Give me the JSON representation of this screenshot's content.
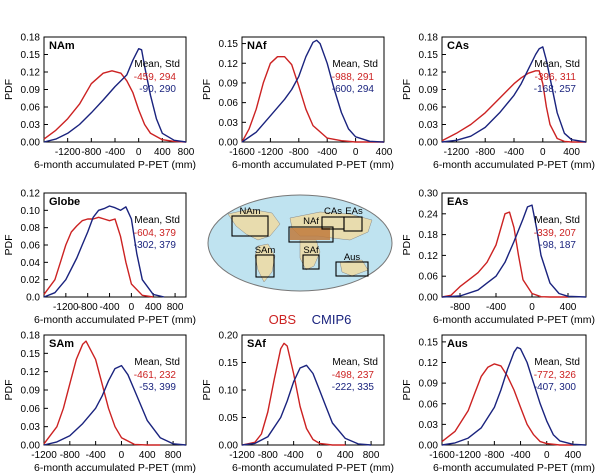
{
  "figure": {
    "obs_color": "#cc2222",
    "cmip_color": "#1a237e",
    "legend": {
      "obs_label": "OBS",
      "cmip_label": "CMIP6"
    },
    "stats_header": "Mean, Std",
    "map_labels": [
      "NAm",
      "NAf",
      "CAs",
      "EAs",
      "SAm",
      "SAf",
      "Aus"
    ]
  },
  "chart_data": [
    {
      "id": "nam",
      "type": "line",
      "title": "NAm",
      "xlabel": "6-month accumulated P-PET (mm)",
      "ylabel": "PDF",
      "xlim": [
        -1600,
        800
      ],
      "xticks": [
        -1200,
        -800,
        -400,
        0,
        400,
        800
      ],
      "xtick_labels": [
        "-1200",
        "-800",
        "-400",
        "0",
        "400",
        "800"
      ],
      "ylim": [
        0,
        0.18
      ],
      "yticks": [
        0,
        0.03,
        0.06,
        0.09,
        0.12,
        0.15,
        0.18
      ],
      "ytick_labels": [
        "0.00",
        "0.03",
        "0.06",
        "0.09",
        "0.12",
        "0.15",
        "0.18"
      ],
      "stats": [
        {
          "name": "OBS",
          "text": "-459, 294"
        },
        {
          "name": "CMIP6",
          "text": "-90, 290"
        }
      ],
      "series": [
        {
          "name": "OBS",
          "x": [
            -1600,
            -1400,
            -1200,
            -1000,
            -800,
            -600,
            -450,
            -300,
            -200,
            -100,
            0,
            100,
            200,
            400,
            600,
            800
          ],
          "y": [
            0.005,
            0.02,
            0.04,
            0.065,
            0.1,
            0.118,
            0.122,
            0.118,
            0.105,
            0.085,
            0.055,
            0.03,
            0.015,
            0.004,
            0.001,
            0
          ]
        },
        {
          "name": "CMIP6",
          "x": [
            -1600,
            -1400,
            -1200,
            -1000,
            -800,
            -600,
            -400,
            -200,
            -100,
            0,
            50,
            100,
            200,
            300,
            400,
            600,
            800
          ],
          "y": [
            0,
            0.005,
            0.015,
            0.03,
            0.05,
            0.072,
            0.095,
            0.115,
            0.14,
            0.16,
            0.158,
            0.13,
            0.08,
            0.04,
            0.015,
            0.003,
            0
          ]
        }
      ]
    },
    {
      "id": "naf",
      "type": "line",
      "title": "NAf",
      "xlabel": "6-month accumulated P-PET (mm)",
      "ylabel": "PDF",
      "xlim": [
        -1600,
        400
      ],
      "xticks": [
        -1600,
        -1200,
        -800,
        -400,
        0,
        400
      ],
      "xtick_labels": [
        "-1600",
        "-1200",
        "-800",
        "-400",
        "0",
        "400"
      ],
      "ylim": [
        0,
        0.16
      ],
      "yticks": [
        0,
        0.03,
        0.06,
        0.09,
        0.12,
        0.15
      ],
      "ytick_labels": [
        "0.00",
        "0.03",
        "0.06",
        "0.09",
        "0.12",
        "0.15"
      ],
      "stats": [
        {
          "name": "OBS",
          "text": "-988, 291"
        },
        {
          "name": "CMIP6",
          "text": "-600, 294"
        }
      ],
      "series": [
        {
          "name": "OBS",
          "x": [
            -1600,
            -1500,
            -1400,
            -1300,
            -1200,
            -1100,
            -1000,
            -900,
            -800,
            -700,
            -600,
            -400,
            -200,
            0,
            200,
            400
          ],
          "y": [
            0,
            0.02,
            0.05,
            0.09,
            0.12,
            0.13,
            0.13,
            0.118,
            0.085,
            0.05,
            0.025,
            0.006,
            0.002,
            0,
            0,
            0
          ]
        },
        {
          "name": "CMIP6",
          "x": [
            -1600,
            -1400,
            -1200,
            -1000,
            -900,
            -800,
            -700,
            -600,
            -550,
            -500,
            -400,
            -300,
            -200,
            -100,
            0,
            200,
            400
          ],
          "y": [
            0,
            0.015,
            0.04,
            0.065,
            0.08,
            0.1,
            0.13,
            0.152,
            0.155,
            0.15,
            0.12,
            0.08,
            0.045,
            0.02,
            0.008,
            0.001,
            0
          ]
        }
      ]
    },
    {
      "id": "cas",
      "type": "line",
      "title": "CAs",
      "xlabel": "6-month accumulated P-PET (mm)",
      "ylabel": "PDF",
      "xlim": [
        -1400,
        600
      ],
      "xticks": [
        -1200,
        -800,
        -400,
        0,
        400
      ],
      "xtick_labels": [
        "-1200",
        "-800",
        "-400",
        "0",
        "400"
      ],
      "ylim": [
        0,
        0.18
      ],
      "yticks": [
        0,
        0.03,
        0.06,
        0.09,
        0.12,
        0.15,
        0.18
      ],
      "ytick_labels": [
        "0.00",
        "0.03",
        "0.06",
        "0.09",
        "0.12",
        "0.15",
        "0.18"
      ],
      "stats": [
        {
          "name": "OBS",
          "text": "-396, 311"
        },
        {
          "name": "CMIP6",
          "text": "-168, 257"
        }
      ],
      "series": [
        {
          "name": "OBS",
          "x": [
            -1400,
            -1200,
            -1000,
            -800,
            -600,
            -400,
            -300,
            -200,
            -100,
            -50,
            0,
            50,
            100,
            200,
            300,
            400,
            600
          ],
          "y": [
            0.002,
            0.015,
            0.03,
            0.05,
            0.075,
            0.1,
            0.11,
            0.118,
            0.122,
            0.122,
            0.1,
            0.06,
            0.03,
            0.006,
            0.001,
            0,
            0
          ]
        },
        {
          "name": "CMIP6",
          "x": [
            -1400,
            -1200,
            -1000,
            -800,
            -600,
            -400,
            -300,
            -200,
            -100,
            -50,
            0,
            50,
            100,
            200,
            300,
            400,
            600
          ],
          "y": [
            0,
            0.003,
            0.01,
            0.025,
            0.05,
            0.08,
            0.1,
            0.125,
            0.15,
            0.16,
            0.163,
            0.14,
            0.11,
            0.05,
            0.015,
            0.004,
            0
          ]
        }
      ]
    },
    {
      "id": "globe",
      "type": "line",
      "title": "Globe",
      "xlabel": "6-month accumulated P-PET (mm)",
      "ylabel": "PDF",
      "xlim": [
        -1600,
        1000
      ],
      "xticks": [
        -1200,
        -800,
        -400,
        0,
        400,
        800
      ],
      "xtick_labels": [
        "-1200",
        "-800",
        "-400",
        "0",
        "400",
        "800"
      ],
      "ylim": [
        0,
        0.12
      ],
      "yticks": [
        0,
        0.02,
        0.04,
        0.06,
        0.08,
        0.1,
        0.12
      ],
      "ytick_labels": [
        "0.0",
        "0.02",
        "0.04",
        "0.06",
        "0.08",
        "0.10",
        "0.12"
      ],
      "stats": [
        {
          "name": "OBS",
          "text": "-604, 379"
        },
        {
          "name": "CMIP6",
          "text": "-302, 379"
        }
      ],
      "series": [
        {
          "name": "OBS",
          "x": [
            -1600,
            -1400,
            -1300,
            -1200,
            -1100,
            -1000,
            -900,
            -800,
            -700,
            -600,
            -500,
            -400,
            -300,
            -200,
            -100,
            0,
            200,
            400
          ],
          "y": [
            0.003,
            0.02,
            0.04,
            0.06,
            0.075,
            0.082,
            0.088,
            0.09,
            0.09,
            0.092,
            0.09,
            0.088,
            0.09,
            0.07,
            0.04,
            0.015,
            0.002,
            0
          ]
        },
        {
          "name": "CMIP6",
          "x": [
            -1600,
            -1400,
            -1200,
            -1000,
            -900,
            -800,
            -700,
            -600,
            -500,
            -400,
            -300,
            -200,
            -100,
            0,
            100,
            200,
            400,
            600
          ],
          "y": [
            0,
            0.005,
            0.02,
            0.045,
            0.06,
            0.075,
            0.092,
            0.1,
            0.102,
            0.105,
            0.103,
            0.1,
            0.104,
            0.09,
            0.05,
            0.02,
            0.003,
            0
          ]
        }
      ]
    },
    {
      "id": "eas",
      "type": "line",
      "title": "EAs",
      "xlabel": "6-month accumulated P-PET (mm)",
      "ylabel": "PDF",
      "xlim": [
        -1000,
        600
      ],
      "xticks": [
        -800,
        -400,
        0,
        400
      ],
      "xtick_labels": [
        "-800",
        "-400",
        "0",
        "400"
      ],
      "ylim": [
        0,
        0.3
      ],
      "yticks": [
        0,
        0.06,
        0.12,
        0.18,
        0.24,
        0.3
      ],
      "ytick_labels": [
        "0.00",
        "0.06",
        "0.12",
        "0.18",
        "0.24",
        "0.30"
      ],
      "stats": [
        {
          "name": "OBS",
          "text": "-339, 207"
        },
        {
          "name": "CMIP6",
          "text": "-98, 187"
        }
      ],
      "series": [
        {
          "name": "OBS",
          "x": [
            -1000,
            -900,
            -800,
            -700,
            -600,
            -500,
            -400,
            -300,
            -250,
            -200,
            -150,
            -100,
            0,
            100,
            200,
            400
          ],
          "y": [
            0,
            0.005,
            0.03,
            0.05,
            0.07,
            0.1,
            0.15,
            0.24,
            0.245,
            0.2,
            0.12,
            0.05,
            0.01,
            0.001,
            0,
            0
          ]
        },
        {
          "name": "CMIP6",
          "x": [
            -1000,
            -800,
            -600,
            -500,
            -400,
            -300,
            -200,
            -100,
            -50,
            0,
            50,
            100,
            200,
            300,
            400,
            600
          ],
          "y": [
            0,
            0.003,
            0.02,
            0.04,
            0.06,
            0.1,
            0.16,
            0.225,
            0.26,
            0.265,
            0.2,
            0.12,
            0.04,
            0.01,
            0.002,
            0
          ]
        }
      ]
    },
    {
      "id": "sam",
      "type": "line",
      "title": "SAm",
      "xlabel": "6-month accumulated P-PET (mm)",
      "ylabel": "PDF",
      "xlim": [
        -1200,
        1000
      ],
      "xticks": [
        -1200,
        -800,
        -400,
        0,
        400,
        800
      ],
      "xtick_labels": [
        "-1200",
        "-800",
        "-400",
        "0",
        "400",
        "800"
      ],
      "ylim": [
        0,
        0.18
      ],
      "yticks": [
        0,
        0.03,
        0.06,
        0.09,
        0.12,
        0.15,
        0.18
      ],
      "ytick_labels": [
        "0.00",
        "0.03",
        "0.06",
        "0.09",
        "0.12",
        "0.15",
        "0.18"
      ],
      "stats": [
        {
          "name": "OBS",
          "text": "-461, 232"
        },
        {
          "name": "CMIP6",
          "text": "-53, 399"
        }
      ],
      "series": [
        {
          "name": "OBS",
          "x": [
            -1200,
            -1000,
            -900,
            -800,
            -700,
            -600,
            -550,
            -500,
            -400,
            -300,
            -200,
            -100,
            0,
            200,
            400,
            600
          ],
          "y": [
            0.002,
            0.03,
            0.06,
            0.1,
            0.14,
            0.165,
            0.17,
            0.16,
            0.14,
            0.1,
            0.06,
            0.03,
            0.012,
            0.001,
            0,
            0
          ]
        },
        {
          "name": "CMIP6",
          "x": [
            -1200,
            -1000,
            -800,
            -600,
            -400,
            -300,
            -200,
            -100,
            0,
            100,
            200,
            400,
            600,
            800,
            1000
          ],
          "y": [
            0,
            0.005,
            0.015,
            0.035,
            0.06,
            0.08,
            0.105,
            0.125,
            0.13,
            0.115,
            0.09,
            0.04,
            0.012,
            0.002,
            0
          ]
        }
      ]
    },
    {
      "id": "saf",
      "type": "line",
      "title": "SAf",
      "xlabel": "6-month accumulated P-PET (mm)",
      "ylabel": "PDF",
      "xlim": [
        -1200,
        1000
      ],
      "xticks": [
        -1200,
        -800,
        -400,
        0,
        400,
        800
      ],
      "xtick_labels": [
        "-1200",
        "-800",
        "-400",
        "0",
        "400",
        "800"
      ],
      "ylim": [
        0,
        0.2
      ],
      "yticks": [
        0,
        0.05,
        0.1,
        0.15,
        0.2
      ],
      "ytick_labels": [
        "0.00",
        "0.05",
        "0.10",
        "0.15",
        "0.20"
      ],
      "stats": [
        {
          "name": "OBS",
          "text": "-498, 237"
        },
        {
          "name": "CMIP6",
          "text": "-222, 335"
        }
      ],
      "series": [
        {
          "name": "OBS",
          "x": [
            -1200,
            -1000,
            -900,
            -800,
            -700,
            -600,
            -550,
            -500,
            -400,
            -300,
            -200,
            -100,
            0,
            200,
            400
          ],
          "y": [
            0,
            0.005,
            0.02,
            0.06,
            0.12,
            0.175,
            0.185,
            0.18,
            0.13,
            0.07,
            0.03,
            0.01,
            0.003,
            0,
            0
          ]
        },
        {
          "name": "CMIP6",
          "x": [
            -1200,
            -1000,
            -800,
            -600,
            -500,
            -400,
            -300,
            -200,
            -100,
            0,
            100,
            200,
            400,
            600,
            800
          ],
          "y": [
            0,
            0.003,
            0.015,
            0.05,
            0.08,
            0.115,
            0.14,
            0.145,
            0.13,
            0.1,
            0.07,
            0.04,
            0.012,
            0.002,
            0
          ]
        }
      ]
    },
    {
      "id": "aus",
      "type": "line",
      "title": "Aus",
      "xlabel": "6-month accumulated P-PET (mm)",
      "ylabel": "PDF",
      "xlim": [
        -1600,
        600
      ],
      "xticks": [
        -1600,
        -1200,
        -800,
        -400,
        0,
        400
      ],
      "xtick_labels": [
        "-1600",
        "-1200",
        "-800",
        "-400",
        "0",
        "400"
      ],
      "ylim": [
        0,
        0.16
      ],
      "yticks": [
        0,
        0.03,
        0.06,
        0.09,
        0.12,
        0.15
      ],
      "ytick_labels": [
        "0.00",
        "0.03",
        "0.06",
        "0.09",
        "0.12",
        "0.15"
      ],
      "stats": [
        {
          "name": "OBS",
          "text": "-772, 326"
        },
        {
          "name": "CMIP6",
          "text": "-407, 300"
        }
      ],
      "series": [
        {
          "name": "OBS",
          "x": [
            -1600,
            -1400,
            -1200,
            -1100,
            -1000,
            -900,
            -800,
            -700,
            -600,
            -500,
            -400,
            -300,
            -200,
            -100,
            0,
            200,
            400
          ],
          "y": [
            0.005,
            0.02,
            0.05,
            0.075,
            0.1,
            0.113,
            0.118,
            0.115,
            0.1,
            0.08,
            0.055,
            0.03,
            0.015,
            0.005,
            0.002,
            0,
            0
          ]
        },
        {
          "name": "CMIP6",
          "x": [
            -1600,
            -1400,
            -1200,
            -1000,
            -800,
            -700,
            -600,
            -500,
            -450,
            -400,
            -300,
            -200,
            -100,
            0,
            100,
            200,
            400,
            600
          ],
          "y": [
            0,
            0.003,
            0.01,
            0.025,
            0.055,
            0.08,
            0.11,
            0.135,
            0.142,
            0.14,
            0.12,
            0.09,
            0.06,
            0.035,
            0.015,
            0.006,
            0.001,
            0
          ]
        }
      ]
    }
  ]
}
